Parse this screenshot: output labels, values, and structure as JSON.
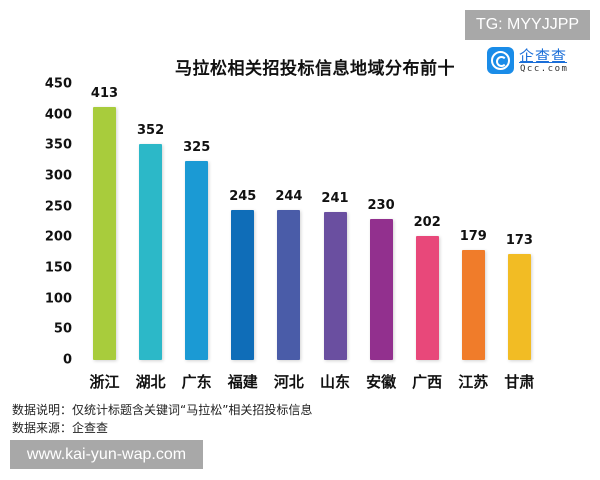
{
  "watermark_top": "TG: MYYJJPP",
  "watermark_bottom": "www.kai-yun-wap.com",
  "logo": {
    "name": "企查查",
    "domain": "Qcc.com",
    "icon": "qcc-logo-icon",
    "color": "#1a8ce8"
  },
  "notes": {
    "description": "数据说明：仅统计标题含关键词“马拉松”相关招投标信息",
    "source": "数据来源：企查查"
  },
  "chart_data": {
    "type": "bar",
    "title": "马拉松相关招投标信息地域分布前十",
    "xlabel": "",
    "ylabel": "",
    "ylim": [
      0,
      450
    ],
    "yticks": [
      0,
      50,
      100,
      150,
      200,
      250,
      300,
      350,
      400,
      450
    ],
    "grid": false,
    "legend": null,
    "categories": [
      "浙江",
      "湖北",
      "广东",
      "福建",
      "河北",
      "山东",
      "安徽",
      "广西",
      "江苏",
      "甘肃"
    ],
    "values": [
      413,
      352,
      325,
      245,
      244,
      241,
      230,
      202,
      179,
      173
    ],
    "colors": [
      "#a8cc3c",
      "#2cb8c8",
      "#1b9ad4",
      "#0f6db8",
      "#4a5ca8",
      "#6a4fa0",
      "#92308e",
      "#e8487a",
      "#f07c2a",
      "#f2bc24"
    ],
    "value_labels": [
      "413",
      "352",
      "325",
      "245",
      "244",
      "241",
      "230",
      "202",
      "179",
      "173"
    ]
  }
}
